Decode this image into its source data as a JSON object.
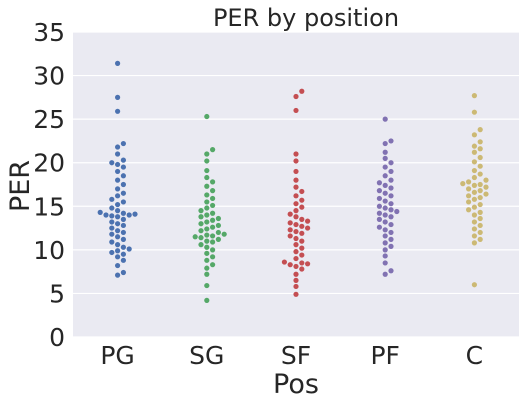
{
  "chart_data": {
    "type": "scatter",
    "subtype": "swarm",
    "title": "PER by position",
    "xlabel": "Pos",
    "ylabel": "PER",
    "categories": [
      "PG",
      "SG",
      "SF",
      "PF",
      "C"
    ],
    "ylim": [
      0,
      35
    ],
    "yticks": [
      "0",
      "5",
      "10",
      "15",
      "20",
      "25",
      "30",
      "35"
    ],
    "grid": true,
    "background": "#EAEAF2",
    "series": [
      {
        "category": "PG",
        "color": "#4C72B0",
        "values": [
          7.1,
          7.4,
          8.2,
          8.8,
          9.2,
          9.5,
          9.7,
          9.9,
          10.1,
          10.3,
          10.6,
          10.9,
          11.2,
          11.5,
          11.8,
          12.0,
          12.2,
          12.5,
          12.8,
          13.0,
          13.2,
          13.5,
          13.8,
          13.9,
          14.0,
          14.0,
          14.1,
          14.2,
          14.3,
          14.5,
          14.8,
          15.2,
          15.5,
          15.8,
          16.2,
          16.5,
          17.0,
          17.5,
          18.0,
          18.5,
          19.0,
          19.5,
          19.8,
          20.0,
          20.3,
          21.0,
          21.8,
          22.2,
          25.9,
          27.5,
          31.4
        ]
      },
      {
        "category": "SG",
        "color": "#55A868",
        "values": [
          4.2,
          5.9,
          7.2,
          7.9,
          8.3,
          8.8,
          9.2,
          9.6,
          10.0,
          10.3,
          10.6,
          10.9,
          11.0,
          11.2,
          11.4,
          11.5,
          11.6,
          11.7,
          11.8,
          12.0,
          12.2,
          12.4,
          12.6,
          12.8,
          13.0,
          13.2,
          13.4,
          13.6,
          13.8,
          14.0,
          14.2,
          14.5,
          14.8,
          15.1,
          15.5,
          15.9,
          16.3,
          16.8,
          17.3,
          17.8,
          18.3,
          19.1,
          20.2,
          21.0,
          21.5,
          25.3
        ]
      },
      {
        "category": "SF",
        "color": "#C44E52",
        "values": [
          4.9,
          5.8,
          6.5,
          7.2,
          7.8,
          8.1,
          8.3,
          8.4,
          8.5,
          8.6,
          9.0,
          9.4,
          9.8,
          10.2,
          10.6,
          11.0,
          11.3,
          11.6,
          11.9,
          12.1,
          12.3,
          12.5,
          12.7,
          12.9,
          13.1,
          13.3,
          13.5,
          13.8,
          14.1,
          14.5,
          14.9,
          15.3,
          15.7,
          16.2,
          16.7,
          17.2,
          18.0,
          19.0,
          20.2,
          21.0,
          26.0,
          27.6,
          28.2
        ]
      },
      {
        "category": "PF",
        "color": "#8172B2",
        "values": [
          7.2,
          7.6,
          8.5,
          9.3,
          10.0,
          10.4,
          10.8,
          11.2,
          11.6,
          12.0,
          12.3,
          12.6,
          12.9,
          13.2,
          13.5,
          13.8,
          14.0,
          14.2,
          14.4,
          14.6,
          14.8,
          15.0,
          15.3,
          15.6,
          15.9,
          16.2,
          16.5,
          16.8,
          17.1,
          17.4,
          17.7,
          18.0,
          18.5,
          19.0,
          19.5,
          20.0,
          20.5,
          21.2,
          22.2,
          22.5,
          25.0
        ]
      },
      {
        "category": "C",
        "color": "#CCB974",
        "values": [
          6.0,
          10.8,
          11.2,
          11.6,
          12.0,
          12.4,
          12.8,
          13.2,
          13.6,
          14.0,
          14.3,
          14.6,
          14.9,
          15.2,
          15.5,
          15.8,
          16.0,
          16.2,
          16.4,
          16.6,
          16.8,
          17.0,
          17.2,
          17.4,
          17.5,
          17.6,
          17.8,
          18.0,
          18.3,
          18.7,
          19.1,
          19.6,
          20.1,
          20.6,
          21.2,
          21.6,
          21.9,
          22.4,
          23.2,
          23.8,
          25.8,
          27.7
        ]
      }
    ]
  }
}
